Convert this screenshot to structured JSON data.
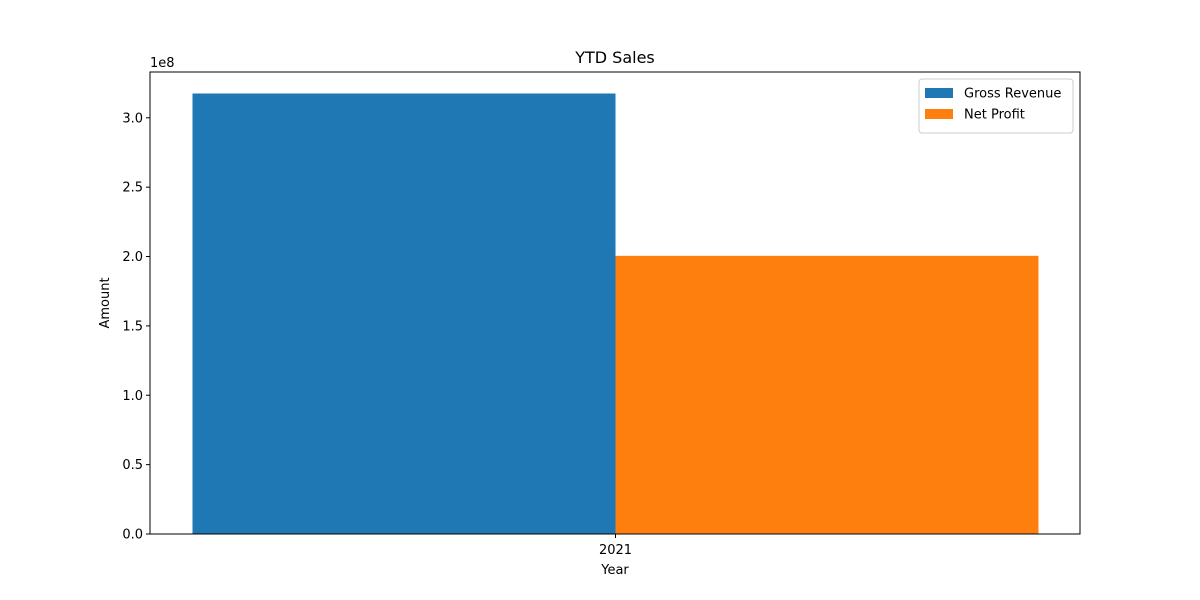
{
  "chart_data": {
    "type": "bar",
    "title": "YTD Sales",
    "xlabel": "Year",
    "ylabel": "Amount",
    "categories": [
      "2021"
    ],
    "series": [
      {
        "name": "Gross Revenue",
        "values": [
          317500000
        ],
        "color": "#1f77b4"
      },
      {
        "name": "Net Profit",
        "values": [
          200500000
        ],
        "color": "#ff7f0e"
      }
    ],
    "ylim": [
      0,
      333000000
    ],
    "y_ticks": [
      0,
      50000000,
      100000000,
      150000000,
      200000000,
      250000000,
      300000000
    ],
    "y_tick_labels": [
      "0.0",
      "0.5",
      "1.0",
      "1.5",
      "2.0",
      "2.5",
      "3.0"
    ],
    "y_offset_label": "1e8",
    "grid": false,
    "legend_position": "top-right"
  }
}
